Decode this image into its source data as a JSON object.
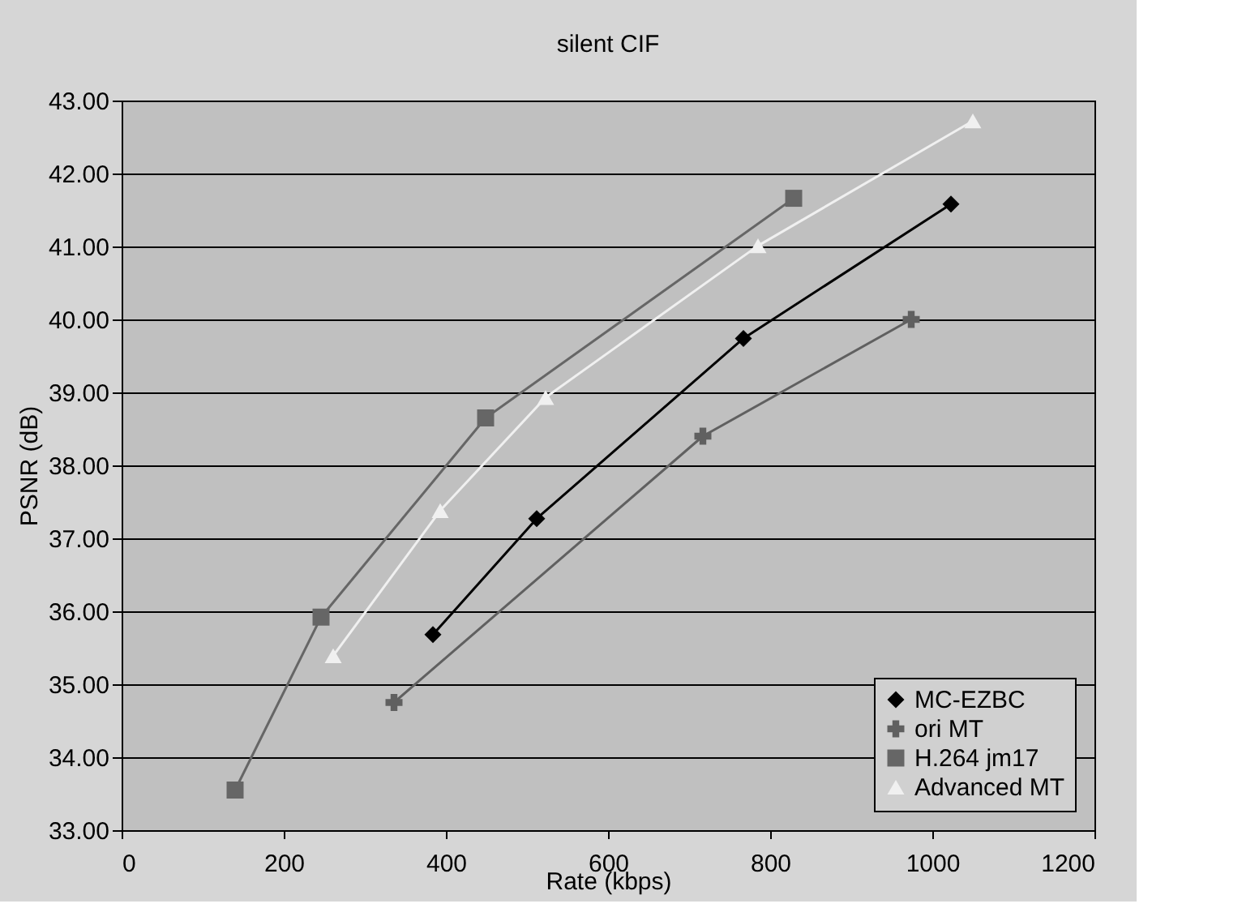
{
  "chart_data": {
    "type": "line",
    "title": "silent CIF",
    "xlabel": "Rate (kbps)",
    "ylabel": "PSNR (dB)",
    "xlim": [
      0,
      1200
    ],
    "xticks": [
      0,
      200,
      400,
      600,
      800,
      1000,
      1200
    ],
    "ylim": [
      33,
      43
    ],
    "yticks": [
      {
        "value": 33,
        "label": "33.00"
      },
      {
        "value": 34,
        "label": "34.00"
      },
      {
        "value": 35,
        "label": "35.00"
      },
      {
        "value": 36,
        "label": "36.00"
      },
      {
        "value": 37,
        "label": "37.00"
      },
      {
        "value": 38,
        "label": "38.00"
      },
      {
        "value": 39,
        "label": "39.00"
      },
      {
        "value": 40,
        "label": "40.00"
      },
      {
        "value": 41,
        "label": "41.00"
      },
      {
        "value": 42,
        "label": "42.00"
      },
      {
        "value": 43,
        "label": "43.00"
      }
    ],
    "grid": "y",
    "legend": "bottom right",
    "line_style": "solid",
    "series": [
      {
        "name": "MC-EZBC",
        "color": "#000000",
        "marker": "diamond",
        "x": [
          384,
          512,
          767,
          1023
        ],
        "values": [
          35.68,
          37.27,
          39.74,
          41.58
        ]
      },
      {
        "name": "ori MT",
        "color": "#606060",
        "marker": "cross",
        "x": [
          336,
          717,
          974
        ],
        "values": [
          34.75,
          38.4,
          40.0
        ]
      },
      {
        "name": "H.264 jm17",
        "color": "#666666",
        "marker": "square",
        "x": [
          140,
          246,
          449,
          829
        ],
        "values": [
          33.55,
          35.92,
          38.65,
          41.66
        ]
      },
      {
        "name": "Advanced MT",
        "color": "#f0f0f0",
        "marker": "triangle",
        "x": [
          261,
          393,
          523,
          785,
          1050
        ],
        "values": [
          35.39,
          37.38,
          38.93,
          41.01,
          42.72
        ]
      }
    ]
  }
}
